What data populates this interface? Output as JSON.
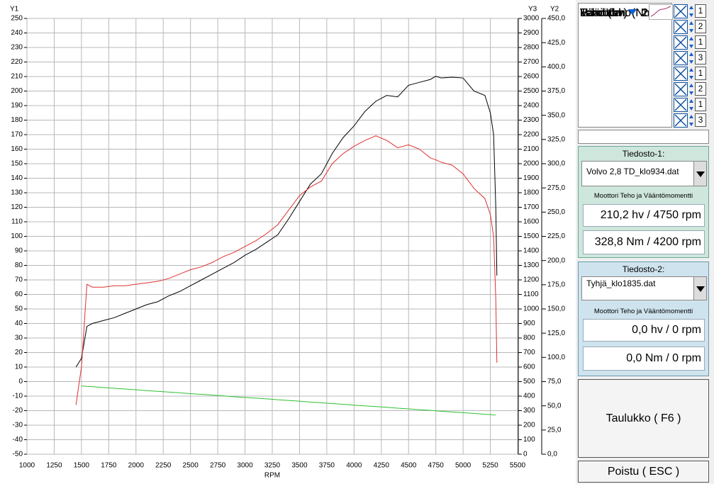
{
  "chart_data": {
    "type": "line",
    "xlabel": "RPM",
    "ylabel": "Y1",
    "y2label": "Y2",
    "y3label": "Y3",
    "x": [
      1450,
      1500,
      1550,
      1600,
      1700,
      1800,
      1900,
      2000,
      2100,
      2200,
      2300,
      2400,
      2500,
      2600,
      2700,
      2800,
      2900,
      3000,
      3100,
      3200,
      3300,
      3400,
      3500,
      3600,
      3700,
      3800,
      3900,
      4000,
      4100,
      4200,
      4300,
      4400,
      4500,
      4600,
      4700,
      4750,
      4800,
      4900,
      5000,
      5100,
      5200,
      5250,
      5280,
      5300,
      5310
    ],
    "xlim": [
      1000,
      5500
    ],
    "xticks": [
      1000,
      1250,
      1500,
      1750,
      2000,
      2250,
      2500,
      2750,
      3000,
      3250,
      3500,
      3750,
      4000,
      4250,
      4500,
      4750,
      5000,
      5250,
      5500
    ],
    "ylim": [
      -50,
      250
    ],
    "yticks": [
      -50,
      -40,
      -30,
      -20,
      -10,
      0,
      10,
      20,
      30,
      40,
      50,
      60,
      70,
      80,
      90,
      100,
      110,
      120,
      130,
      140,
      150,
      160,
      170,
      180,
      190,
      200,
      210,
      220,
      230,
      240,
      250
    ],
    "y2lim": [
      0,
      450
    ],
    "y2ticks": [
      {
        "value": 0,
        "label": "0,0"
      },
      {
        "value": 25,
        "label": "25,0"
      },
      {
        "value": 50,
        "label": "50,0"
      },
      {
        "value": 75,
        "label": "75,0"
      },
      {
        "value": 100,
        "label": "100,0"
      },
      {
        "value": 125,
        "label": "125,0"
      },
      {
        "value": 150,
        "label": "150,0"
      },
      {
        "value": 175,
        "label": "175,0"
      },
      {
        "value": 200,
        "label": "200,0"
      },
      {
        "value": 225,
        "label": "225,0"
      },
      {
        "value": 250,
        "label": "250,0"
      },
      {
        "value": 275,
        "label": "275,0"
      },
      {
        "value": 300,
        "label": "300,0"
      },
      {
        "value": 325,
        "label": "325,0"
      },
      {
        "value": 350,
        "label": "350,0"
      },
      {
        "value": 375,
        "label": "375,0"
      },
      {
        "value": 400,
        "label": "400,0"
      },
      {
        "value": 425,
        "label": "425,0"
      },
      {
        "value": 450,
        "label": "450,0"
      }
    ],
    "y3lim": [
      0,
      3000
    ],
    "y3ticks": [
      0,
      100,
      200,
      300,
      400,
      500,
      600,
      700,
      800,
      900,
      1000,
      1100,
      1200,
      1300,
      1400,
      1500,
      1600,
      1700,
      1800,
      1900,
      2000,
      2100,
      2200,
      2300,
      2400,
      2500,
      2600,
      2700,
      2800,
      2900,
      3000
    ],
    "grid": true,
    "series": [
      {
        "name": "Teho (hv)",
        "color": "#000000",
        "file": 1,
        "scale": 1,
        "icon": false,
        "values": [
          10,
          16,
          38,
          40,
          42,
          44,
          47,
          50,
          53,
          55,
          59,
          62,
          66,
          70,
          74,
          78,
          82,
          87,
          91,
          96,
          101,
          112,
          124,
          136,
          143,
          157,
          168,
          176,
          186,
          193,
          197,
          196,
          204,
          206,
          208,
          210.2,
          209,
          209.5,
          209,
          200,
          197,
          185,
          170,
          120,
          73
        ]
      },
      {
        "name": "Vääntöm. (Nm)",
        "color": "#e03030",
        "file": 1,
        "scale": 2,
        "icon": false,
        "axis": "y2",
        "values": [
          51,
          90,
          175.5,
          172.5,
          172.5,
          174,
          174,
          175.5,
          177,
          178.5,
          181.5,
          186,
          190.5,
          193.5,
          198,
          204,
          208.5,
          214.5,
          220.5,
          228,
          237,
          252,
          267,
          276,
          282,
          300,
          310.5,
          318,
          324,
          328.8,
          324,
          316.5,
          319.5,
          315,
          306,
          304,
          301.5,
          298.5,
          289.5,
          274.5,
          264,
          247.5,
          225,
          160,
          94.5
        ]
      },
      {
        "name": "Häviöteho",
        "color": "#30c030",
        "file": 1,
        "scale": 1,
        "icon": true,
        "values": [
          null,
          -3.0,
          -3.3,
          -3.5,
          -4.1,
          -4.6,
          -5.1,
          -5.6,
          -6.2,
          -6.7,
          -7.2,
          -7.7,
          -8.3,
          -8.8,
          -9.3,
          -9.8,
          -10.4,
          -10.9,
          -11.4,
          -11.9,
          -12.5,
          -13.0,
          -13.5,
          -14.1,
          -14.6,
          -15.1,
          -15.6,
          -16.2,
          -16.7,
          -17.2,
          -17.7,
          -18.3,
          -18.8,
          -19.3,
          -19.8,
          -20.1,
          -20.4,
          -20.9,
          -21.4,
          -21.9,
          -22.5,
          -22.7,
          -22.9,
          -23.0,
          null
        ]
      }
    ],
    "legend_extra": [
      {
        "name": "Lambda",
        "color": "#30a0c8",
        "file": 1,
        "scale": 3,
        "icon": true
      },
      {
        "name": "Teho (hv)",
        "color": "#e8e070",
        "file": 2,
        "scale": 1,
        "icon": false
      },
      {
        "name": "Vääntöm. (Nm)",
        "color": "#b080e0",
        "file": 2,
        "scale": 2,
        "icon": false
      },
      {
        "name": "Häviöteho",
        "color": "#d0a030",
        "file": 2,
        "scale": 1,
        "icon": true
      },
      {
        "name": "Lambda",
        "color": "#a03070",
        "file": 2,
        "scale": 3,
        "icon": true
      }
    ]
  },
  "panel": {
    "file1": {
      "title": "Tiedosto-1:",
      "file": "Volvo 2,8 TD_klo934.dat",
      "heading": "Moottori Teho ja Vääntömomentti",
      "power": "210,2 hv / 4750 rpm",
      "torque": "328,8 Nm / 4200 rpm"
    },
    "file2": {
      "title": "Tiedosto-2:",
      "file": "Tyhjä_klo1835.dat",
      "heading": "Moottori Teho ja Vääntömomentti",
      "power": "0,0 hv / 0 rpm",
      "torque": "0,0 Nm / 0 rpm"
    },
    "table_button": "Taulukko ( F6 )",
    "exit_button": "Poistu ( ESC )"
  }
}
